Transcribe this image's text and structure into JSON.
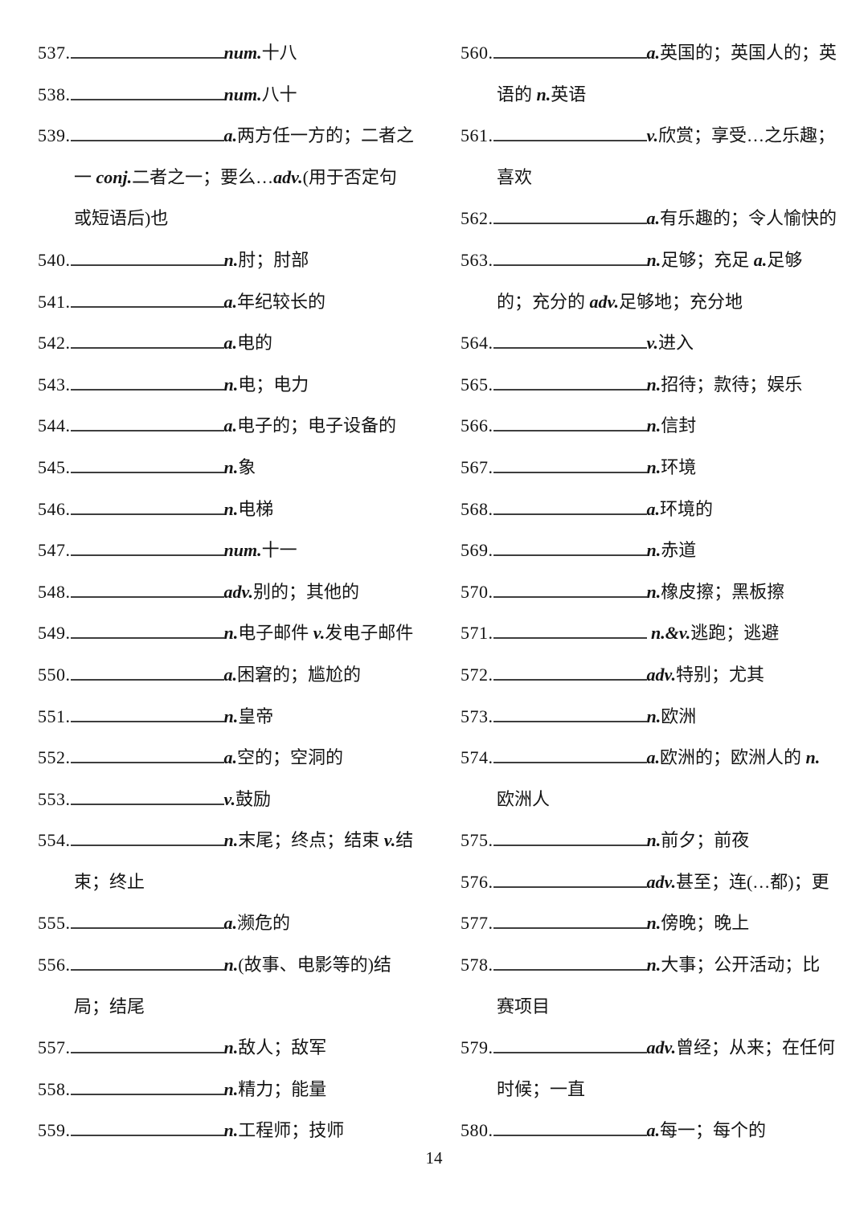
{
  "page_number": "14",
  "columns": {
    "left": [
      {
        "num": "537.",
        "segments": [
          [
            "pos",
            "num."
          ],
          [
            "zh",
            "十八"
          ]
        ]
      },
      {
        "num": "538.",
        "segments": [
          [
            "pos",
            "num."
          ],
          [
            "zh",
            "八十"
          ]
        ]
      },
      {
        "num": "539.",
        "segments": [
          [
            "pos",
            "a."
          ],
          [
            "zh",
            "两方任一方的；二者之一 "
          ],
          [
            "pos",
            "conj."
          ],
          [
            "zh",
            "二者之一；要么…"
          ],
          [
            "pos",
            "adv."
          ],
          [
            "zh",
            "(用于否定句或短语后)也"
          ]
        ]
      },
      {
        "num": "540.",
        "segments": [
          [
            "pos",
            "n."
          ],
          [
            "zh",
            "肘；肘部"
          ]
        ]
      },
      {
        "num": "541.",
        "segments": [
          [
            "pos",
            "a."
          ],
          [
            "zh",
            "年纪较长的"
          ]
        ]
      },
      {
        "num": "542.",
        "segments": [
          [
            "pos",
            "a."
          ],
          [
            "zh",
            "电的"
          ]
        ]
      },
      {
        "num": "543.",
        "segments": [
          [
            "pos",
            "n."
          ],
          [
            "zh",
            "电；电力"
          ]
        ]
      },
      {
        "num": "544.",
        "segments": [
          [
            "pos",
            "a."
          ],
          [
            "zh",
            "电子的；电子设备的"
          ]
        ]
      },
      {
        "num": "545.",
        "segments": [
          [
            "pos",
            "n."
          ],
          [
            "zh",
            "象"
          ]
        ]
      },
      {
        "num": "546.",
        "segments": [
          [
            "pos",
            "n."
          ],
          [
            "zh",
            "电梯"
          ]
        ]
      },
      {
        "num": "547.",
        "segments": [
          [
            "pos",
            "num."
          ],
          [
            "zh",
            "十一"
          ]
        ]
      },
      {
        "num": "548.",
        "segments": [
          [
            "pos",
            "adv."
          ],
          [
            "zh",
            "别的；其他的"
          ]
        ]
      },
      {
        "num": "549.",
        "segments": [
          [
            "pos",
            "n."
          ],
          [
            "zh",
            "电子邮件 "
          ],
          [
            "pos",
            "v."
          ],
          [
            "zh",
            "发电子邮件"
          ]
        ]
      },
      {
        "num": "550.",
        "segments": [
          [
            "pos",
            "a."
          ],
          [
            "zh",
            "困窘的；尴尬的"
          ]
        ]
      },
      {
        "num": "551.",
        "segments": [
          [
            "pos",
            "n."
          ],
          [
            "zh",
            "皇帝"
          ]
        ]
      },
      {
        "num": "552.",
        "segments": [
          [
            "pos",
            "a."
          ],
          [
            "zh",
            "空的；空洞的"
          ]
        ]
      },
      {
        "num": "553.",
        "segments": [
          [
            "pos",
            "v."
          ],
          [
            "zh",
            "鼓励"
          ]
        ]
      },
      {
        "num": "554.",
        "segments": [
          [
            "pos",
            "n."
          ],
          [
            "zh",
            "末尾；终点；结束 "
          ],
          [
            "pos",
            "v."
          ],
          [
            "zh",
            "结束；终止"
          ]
        ]
      },
      {
        "num": "555.",
        "segments": [
          [
            "pos",
            "a."
          ],
          [
            "zh",
            "濒危的"
          ]
        ]
      },
      {
        "num": "556.",
        "segments": [
          [
            "pos",
            "n."
          ],
          [
            "zh",
            "(故事、电影等的)结局；结尾"
          ]
        ]
      },
      {
        "num": "557.",
        "segments": [
          [
            "pos",
            "n."
          ],
          [
            "zh",
            "敌人；敌军"
          ]
        ]
      },
      {
        "num": "558.",
        "segments": [
          [
            "pos",
            "n."
          ],
          [
            "zh",
            "精力；能量"
          ]
        ]
      },
      {
        "num": "559.",
        "segments": [
          [
            "pos",
            "n."
          ],
          [
            "zh",
            "工程师；技师"
          ]
        ]
      }
    ],
    "right": [
      {
        "num": "560.",
        "segments": [
          [
            "pos",
            "a."
          ],
          [
            "zh",
            "英国的；英国人的；英语的 "
          ],
          [
            "pos",
            "n."
          ],
          [
            "zh",
            "英语"
          ]
        ]
      },
      {
        "num": "561.",
        "segments": [
          [
            "pos",
            "v."
          ],
          [
            "zh",
            "欣赏；享受…之乐趣；喜欢"
          ]
        ]
      },
      {
        "num": "562.",
        "segments": [
          [
            "pos",
            "a."
          ],
          [
            "zh",
            "有乐趣的；令人愉快的"
          ]
        ]
      },
      {
        "num": "563.",
        "segments": [
          [
            "pos",
            "n."
          ],
          [
            "zh",
            "足够；充足 "
          ],
          [
            "pos",
            "a."
          ],
          [
            "zh",
            "足够的；充分的 "
          ],
          [
            "pos",
            "adv."
          ],
          [
            "zh",
            "足够地；充分地"
          ]
        ]
      },
      {
        "num": "564.",
        "segments": [
          [
            "pos",
            "v."
          ],
          [
            "zh",
            "进入"
          ]
        ]
      },
      {
        "num": "565.",
        "segments": [
          [
            "pos",
            "n."
          ],
          [
            "zh",
            "招待；款待；娱乐"
          ]
        ]
      },
      {
        "num": "566.",
        "segments": [
          [
            "pos",
            "n."
          ],
          [
            "zh",
            "信封"
          ]
        ]
      },
      {
        "num": "567.",
        "segments": [
          [
            "pos",
            "n."
          ],
          [
            "zh",
            "环境"
          ]
        ]
      },
      {
        "num": "568.",
        "segments": [
          [
            "pos",
            "a."
          ],
          [
            "zh",
            "环境的"
          ]
        ]
      },
      {
        "num": "569.",
        "segments": [
          [
            "pos",
            "n."
          ],
          [
            "zh",
            "赤道"
          ]
        ]
      },
      {
        "num": "570.",
        "segments": [
          [
            "pos",
            "n."
          ],
          [
            "zh",
            "橡皮擦；黑板擦"
          ]
        ]
      },
      {
        "num": "571.",
        "segments": [
          [
            "zh",
            " "
          ],
          [
            "pos",
            "n.&v."
          ],
          [
            "zh",
            "逃跑；逃避"
          ]
        ]
      },
      {
        "num": "572.",
        "segments": [
          [
            "pos",
            "adv."
          ],
          [
            "zh",
            "特别；尤其"
          ]
        ]
      },
      {
        "num": "573.",
        "segments": [
          [
            "pos",
            "n."
          ],
          [
            "zh",
            "欧洲"
          ]
        ]
      },
      {
        "num": "574.",
        "segments": [
          [
            "pos",
            "a."
          ],
          [
            "zh",
            "欧洲的；欧洲人的 "
          ],
          [
            "pos",
            "n."
          ],
          [
            "zh",
            "欧洲人"
          ]
        ]
      },
      {
        "num": "575.",
        "segments": [
          [
            "pos",
            "n."
          ],
          [
            "zh",
            "前夕；前夜"
          ]
        ]
      },
      {
        "num": "576.",
        "segments": [
          [
            "pos",
            "adv."
          ],
          [
            "zh",
            "甚至；连(…都)；更"
          ]
        ]
      },
      {
        "num": "577.",
        "segments": [
          [
            "pos",
            "n."
          ],
          [
            "zh",
            "傍晚；晚上"
          ]
        ]
      },
      {
        "num": "578.",
        "segments": [
          [
            "pos",
            "n."
          ],
          [
            "zh",
            "大事；公开活动；比赛项目"
          ]
        ]
      },
      {
        "num": "579.",
        "segments": [
          [
            "pos",
            "adv."
          ],
          [
            "zh",
            "曾经；从来；在任何时候；一直"
          ]
        ]
      },
      {
        "num": "580.",
        "segments": [
          [
            "pos",
            "a."
          ],
          [
            "zh",
            "每一；每个的"
          ]
        ]
      }
    ]
  }
}
